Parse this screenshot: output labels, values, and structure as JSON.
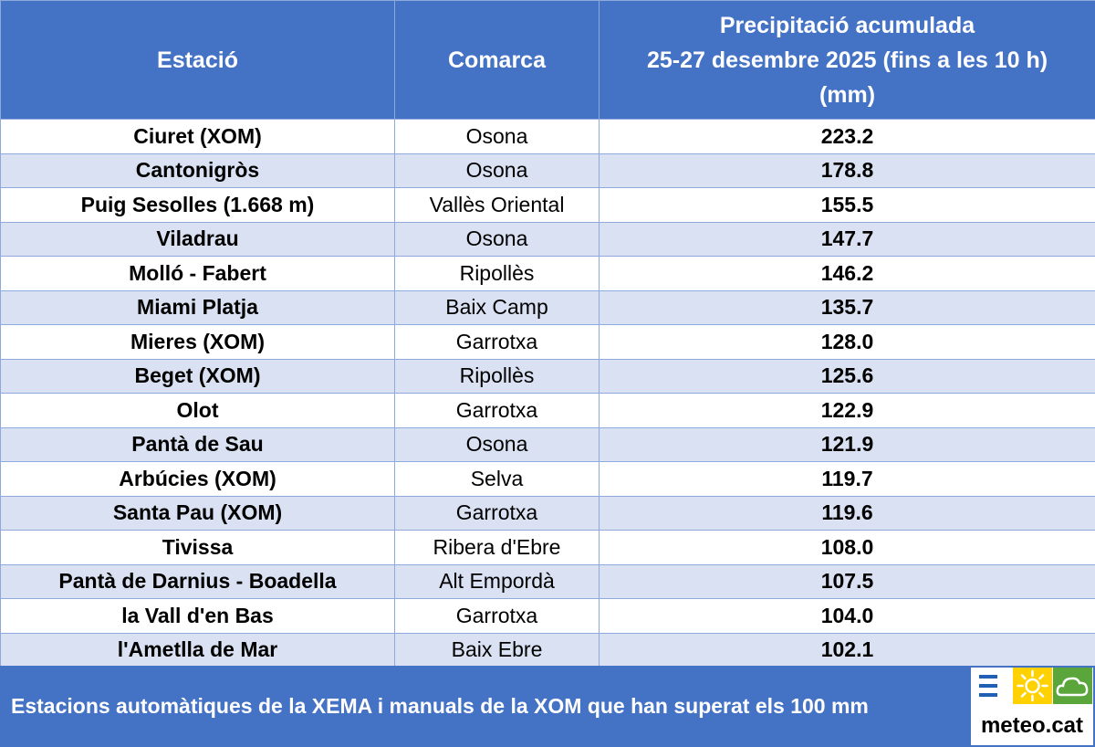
{
  "table": {
    "headers": {
      "station": "Estació",
      "comarca": "Comarca",
      "precip_lines": [
        "Precipitació acumulada",
        "25-27 desembre 2025 (fins a les 10 h)",
        "(mm)"
      ]
    },
    "rows": [
      {
        "station": "Ciuret (XOM)",
        "comarca": "Osona",
        "value": "223.2"
      },
      {
        "station": "Cantonigròs",
        "comarca": "Osona",
        "value": "178.8"
      },
      {
        "station": "Puig Sesolles (1.668 m)",
        "comarca": "Vallès Oriental",
        "value": "155.5"
      },
      {
        "station": "Viladrau",
        "comarca": "Osona",
        "value": "147.7"
      },
      {
        "station": "Molló - Fabert",
        "comarca": "Ripollès",
        "value": "146.2"
      },
      {
        "station": "Miami Platja",
        "comarca": "Baix Camp",
        "value": "135.7"
      },
      {
        "station": "Mieres (XOM)",
        "comarca": "Garrotxa",
        "value": "128.0"
      },
      {
        "station": "Beget (XOM)",
        "comarca": "Ripollès",
        "value": "125.6"
      },
      {
        "station": "Olot",
        "comarca": "Garrotxa",
        "value": "122.9"
      },
      {
        "station": "Pantà de Sau",
        "comarca": "Osona",
        "value": "121.9"
      },
      {
        "station": "Arbúcies (XOM)",
        "comarca": "Selva",
        "value": "119.7"
      },
      {
        "station": "Santa Pau (XOM)",
        "comarca": "Garrotxa",
        "value": "119.6"
      },
      {
        "station": "Tivissa",
        "comarca": "Ribera d'Ebre",
        "value": "108.0"
      },
      {
        "station": "Pantà de Darnius - Boadella",
        "comarca": "Alt Empordà",
        "value": "107.5"
      },
      {
        "station": "la Vall d'en Bas",
        "comarca": "Garrotxa",
        "value": "104.0"
      },
      {
        "station": "l'Ametlla de Mar",
        "comarca": "Baix Ebre",
        "value": "102.1"
      }
    ]
  },
  "footer": {
    "caption": "Estacions automàtiques de la XEMA i manuals de la XOM que han superat els 100 mm"
  },
  "logo": {
    "text": "meteo.cat",
    "icons": [
      "menu-lines-icon",
      "sun-icon",
      "cloud-icon"
    ]
  },
  "colors": {
    "header_blue": "#4472c4",
    "row_alt": "#d9e1f2",
    "logo_yellow": "#ffd100",
    "logo_green": "#5aa63a",
    "logo_blue": "#1f5fb5"
  }
}
